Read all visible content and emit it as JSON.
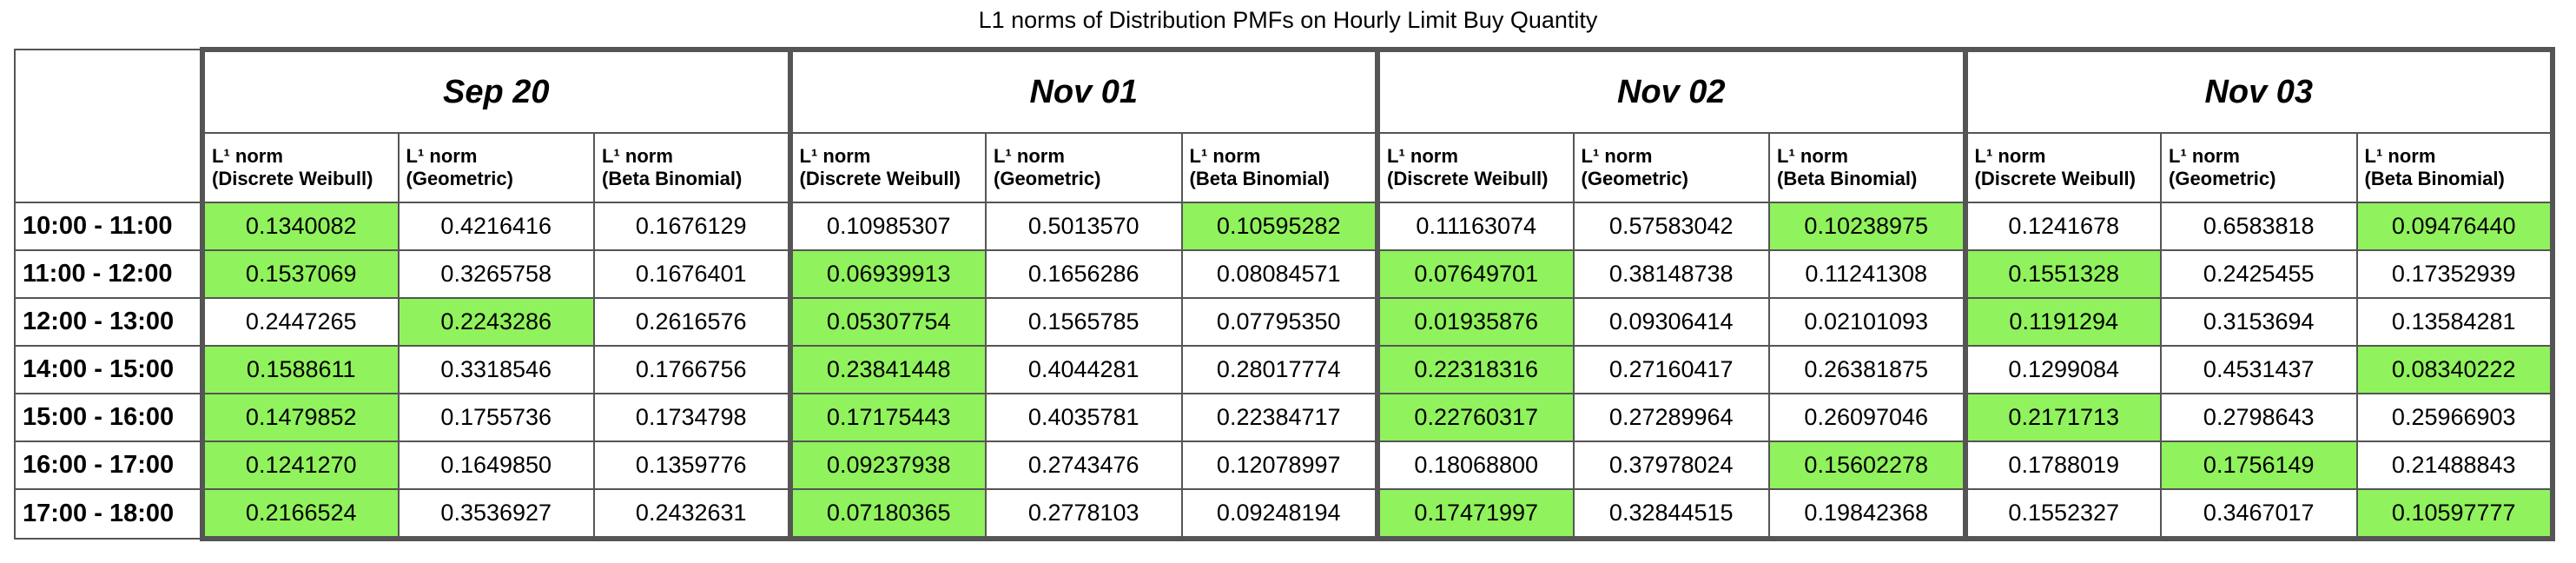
{
  "chart_data": {
    "type": "table",
    "title": "L1 norms of Distribution PMFs on Hourly Limit Buy Quantity",
    "dates": [
      "Sep 20",
      "Nov 01",
      "Nov 02",
      "Nov 03"
    ],
    "subheaders": [
      {
        "line1": "L¹ norm",
        "line2": "(Discrete Weibull)"
      },
      {
        "line1": "L¹ norm",
        "line2": "(Geometric)"
      },
      {
        "line1": "L¹ norm",
        "line2": "(Beta Binomial)"
      }
    ],
    "rows": [
      {
        "label": "10:00 - 11:00",
        "values": [
          "0.1340082",
          "0.4216416",
          "0.1676129",
          "0.10985307",
          "0.5013570",
          "0.10595282",
          "0.11163074",
          "0.57583042",
          "0.10238975",
          "0.1241678",
          "0.6583818",
          "0.09476440"
        ]
      },
      {
        "label": "11:00 - 12:00",
        "values": [
          "0.1537069",
          "0.3265758",
          "0.1676401",
          "0.06939913",
          "0.1656286",
          "0.08084571",
          "0.07649701",
          "0.38148738",
          "0.11241308",
          "0.1551328",
          "0.2425455",
          "0.17352939"
        ]
      },
      {
        "label": "12:00 - 13:00",
        "values": [
          "0.2447265",
          "0.2243286",
          "0.2616576",
          "0.05307754",
          "0.1565785",
          "0.07795350",
          "0.01935876",
          "0.09306414",
          "0.02101093",
          "0.1191294",
          "0.3153694",
          "0.13584281"
        ]
      },
      {
        "label": "14:00 - 15:00",
        "values": [
          "0.1588611",
          "0.3318546",
          "0.1766756",
          "0.23841448",
          "0.4044281",
          "0.28017774",
          "0.22318316",
          "0.27160417",
          "0.26381875",
          "0.1299084",
          "0.4531437",
          "0.08340222"
        ]
      },
      {
        "label": "15:00 - 16:00",
        "values": [
          "0.1479852",
          "0.1755736",
          "0.1734798",
          "0.17175443",
          "0.4035781",
          "0.22384717",
          "0.22760317",
          "0.27289964",
          "0.26097046",
          "0.2171713",
          "0.2798643",
          "0.25966903"
        ]
      },
      {
        "label": "16:00 - 17:00",
        "values": [
          "0.1241270",
          "0.1649850",
          "0.1359776",
          "0.09237938",
          "0.2743476",
          "0.12078997",
          "0.18068800",
          "0.37978024",
          "0.15602278",
          "0.1788019",
          "0.1756149",
          "0.21488843"
        ]
      },
      {
        "label": "17:00 - 18:00",
        "values": [
          "0.2166524",
          "0.3536927",
          "0.2432631",
          "0.07180365",
          "0.2778103",
          "0.09248194",
          "0.17471997",
          "0.32844515",
          "0.19842368",
          "0.1552327",
          "0.3467017",
          "0.10597777"
        ]
      }
    ],
    "highlighted": [
      [
        0,
        5,
        8,
        11
      ],
      [
        0,
        3,
        6,
        9
      ],
      [
        1,
        3,
        6,
        9
      ],
      [
        0,
        3,
        6,
        11
      ],
      [
        0,
        3,
        6,
        9
      ],
      [
        0,
        3,
        8,
        10
      ],
      [
        0,
        3,
        6,
        11
      ]
    ],
    "highlight_color": "#90f25c"
  }
}
